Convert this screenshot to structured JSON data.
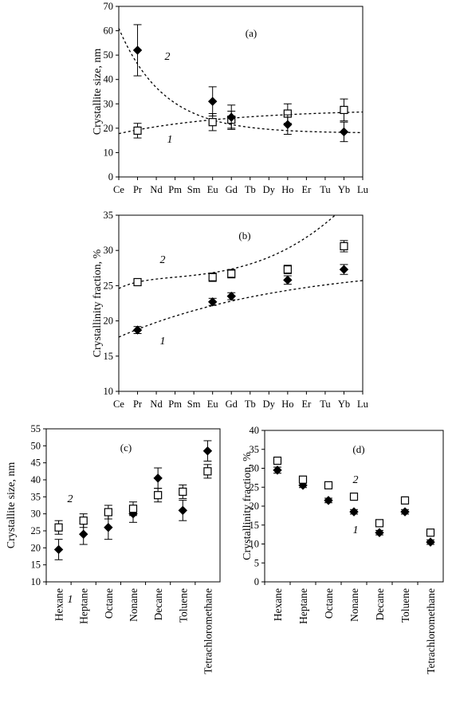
{
  "chart_data": [
    {
      "panel": "(a)",
      "type": "scatter",
      "ylabel": "Crystallite size, nm",
      "categories": [
        "Ce",
        "Pr",
        "Nd",
        "Pm",
        "Sm",
        "Eu",
        "Gd",
        "Tb",
        "Dy",
        "Ho",
        "Er",
        "Tu",
        "Yb",
        "Lu"
      ],
      "ylim": [
        0,
        70
      ],
      "yticks": [
        0,
        10,
        20,
        30,
        40,
        50,
        60,
        70
      ],
      "series": [
        {
          "name": "1",
          "marker": "open-square",
          "x": [
            "Pr",
            "Eu",
            "Gd",
            "Ho",
            "Yb"
          ],
          "y": [
            19,
            22.5,
            23.5,
            26,
            27.5
          ],
          "err": [
            3,
            3.5,
            3.5,
            4,
            4.5
          ]
        },
        {
          "name": "2",
          "marker": "filled-diamond",
          "x": [
            "Pr",
            "Eu",
            "Gd",
            "Ho",
            "Yb"
          ],
          "y": [
            52,
            31,
            24.5,
            21.5,
            18.5
          ],
          "err": [
            10.5,
            6,
            5,
            4,
            4
          ]
        }
      ],
      "trend_lines": [
        "1",
        "2"
      ]
    },
    {
      "panel": "(b)",
      "type": "scatter",
      "ylabel": "Crystallinity fraction, %",
      "categories": [
        "Ce",
        "Pr",
        "Nd",
        "Pm",
        "Sm",
        "Eu",
        "Gd",
        "Tb",
        "Dy",
        "Ho",
        "Er",
        "Tu",
        "Yb",
        "Lu"
      ],
      "ylim": [
        10,
        35
      ],
      "yticks": [
        10,
        15,
        20,
        25,
        30,
        35
      ],
      "series": [
        {
          "name": "1",
          "marker": "filled-diamond",
          "x": [
            "Pr",
            "Eu",
            "Gd",
            "Ho",
            "Yb"
          ],
          "y": [
            18.7,
            22.7,
            23.5,
            25.8,
            27.3
          ],
          "err": [
            0.5,
            0.5,
            0.5,
            0.6,
            0.7
          ]
        },
        {
          "name": "2",
          "marker": "open-square",
          "x": [
            "Pr",
            "Eu",
            "Gd",
            "Ho",
            "Yb"
          ],
          "y": [
            25.5,
            26.2,
            26.7,
            27.3,
            30.6
          ],
          "err": [
            0.5,
            0.6,
            0.6,
            0.6,
            0.8
          ]
        }
      ],
      "trend_lines": [
        "1",
        "2"
      ]
    },
    {
      "panel": "(c)",
      "type": "scatter",
      "ylabel": "Crystallite size, nm",
      "categories": [
        "Hexane",
        "Heptane",
        "Octane",
        "Nonane",
        "Decane",
        "Toluene",
        "Tetrachloromethane"
      ],
      "ylim": [
        10,
        55
      ],
      "yticks": [
        10,
        15,
        20,
        25,
        30,
        35,
        40,
        45,
        50,
        55
      ],
      "series": [
        {
          "name": "1",
          "marker": "filled-diamond",
          "values": [
            19.5,
            24,
            26,
            30,
            40.5,
            31,
            48.5
          ],
          "err": [
            3,
            3,
            3.5,
            2.5,
            3,
            3,
            3
          ]
        },
        {
          "name": "2",
          "marker": "open-square",
          "values": [
            26,
            28,
            30.5,
            31.5,
            35.5,
            36.5,
            42.5
          ],
          "err": [
            2,
            2,
            2,
            2,
            2,
            2,
            2
          ]
        }
      ],
      "labels": {
        "1": "1",
        "2": "2"
      }
    },
    {
      "panel": "(d)",
      "type": "scatter",
      "ylabel": "Crystallinity fraction, %",
      "categories": [
        "Hexane",
        "Heptane",
        "Octane",
        "Nonane",
        "Decane",
        "Toluene",
        "Tetrachloromethane"
      ],
      "ylim": [
        0,
        40
      ],
      "yticks": [
        0,
        5,
        10,
        15,
        20,
        25,
        30,
        35,
        40
      ],
      "series": [
        {
          "name": "1",
          "marker": "filled-diamond",
          "values": [
            29.5,
            25.5,
            21.5,
            18.5,
            13,
            18.5,
            10.5
          ],
          "err": [
            0.8,
            0.6,
            0.6,
            0.6,
            0.6,
            0.6,
            0.6
          ]
        },
        {
          "name": "2",
          "marker": "open-square",
          "values": [
            32,
            27,
            25.5,
            22.5,
            15.5,
            21.5,
            13
          ],
          "err": [
            0.5,
            0.4,
            0.4,
            0.4,
            0.4,
            0.4,
            0.4
          ]
        }
      ],
      "labels": {
        "1": "1",
        "2": "2"
      }
    }
  ]
}
